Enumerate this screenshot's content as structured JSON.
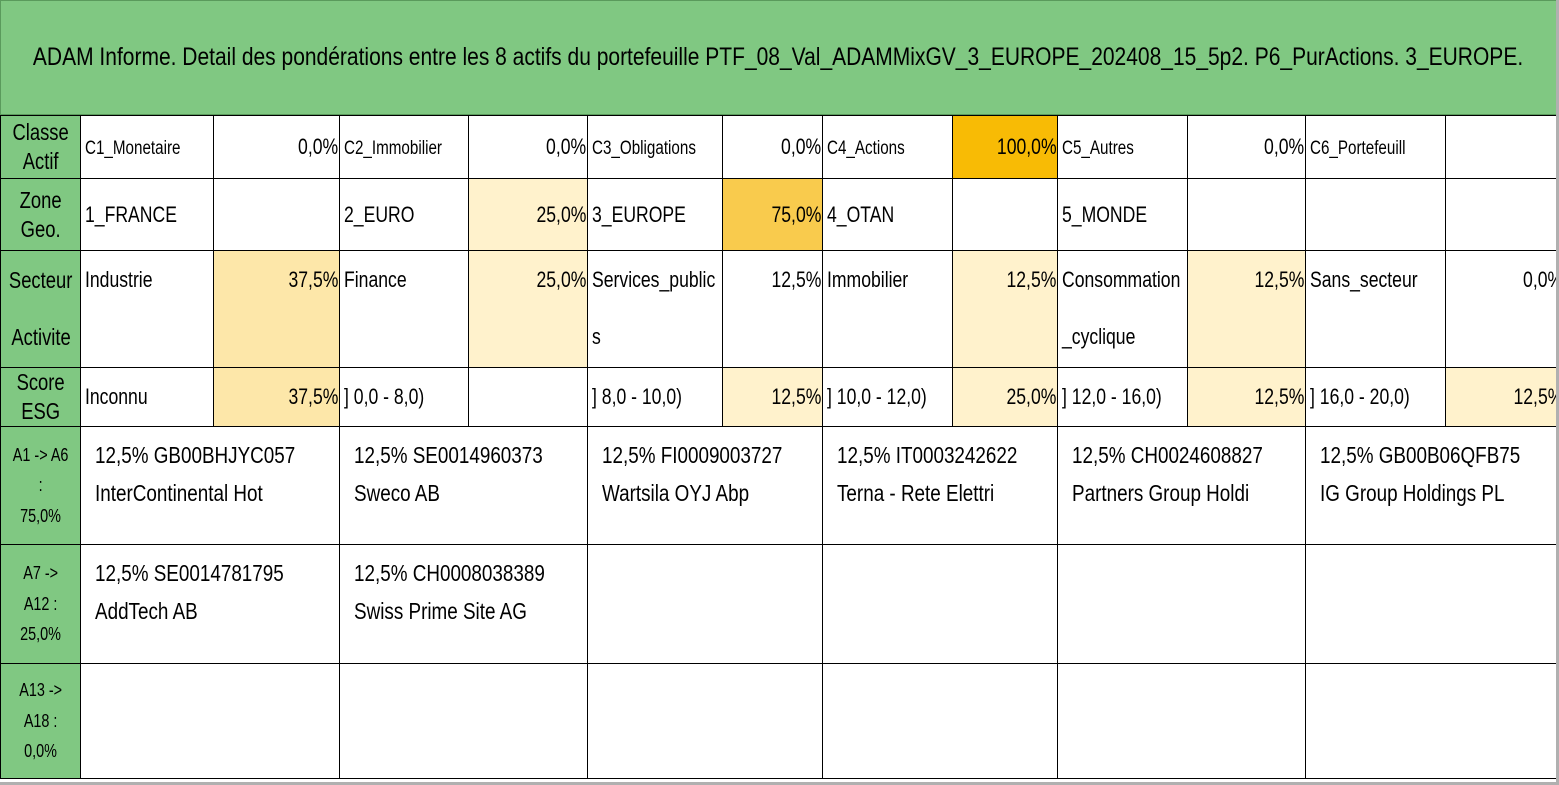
{
  "title": "ADAM Informe. Detail des pondérations entre les 8 actifs du portefeuille PTF_08_Val_ADAMMixGV_3_EUROPE_202408_15_5p2. P6_PurActions. 3_EUROPE.",
  "colors": {
    "header_green": "#80c882",
    "weight_light": "#fff2cc",
    "weight_mid": "#fbd982",
    "weight_strong": "#f8bb05"
  },
  "classe": {
    "label": "Classe Actif",
    "items": [
      {
        "name": "C1_Monetaire",
        "pct": "0,0%"
      },
      {
        "name": "C2_Immobilier",
        "pct": "0,0%"
      },
      {
        "name": "C3_Obligations",
        "pct": "0,0%"
      },
      {
        "name": "C4_Actions",
        "pct": "100,0%"
      },
      {
        "name": "C5_Autres",
        "pct": "0,0%"
      },
      {
        "name": "C6_Portefeuill",
        "pct": ""
      }
    ]
  },
  "zone": {
    "label": "Zone Geo.",
    "items": [
      {
        "name": "1_FRANCE",
        "pct": ""
      },
      {
        "name": "2_EURO",
        "pct": "25,0%"
      },
      {
        "name": "3_EUROPE",
        "pct": "75,0%"
      },
      {
        "name": "4_OTAN",
        "pct": ""
      },
      {
        "name": "5_MONDE",
        "pct": ""
      },
      {
        "name": "",
        "pct": ""
      }
    ]
  },
  "secteur": {
    "label_line1": "Secteur",
    "label_line2": "Activite",
    "items": [
      {
        "name": "Industrie",
        "pct": "37,5%"
      },
      {
        "name": "Finance",
        "pct": "25,0%"
      },
      {
        "name": "Services_publics",
        "pct": "12,5%"
      },
      {
        "name": "Immobilier",
        "pct": "12,5%"
      },
      {
        "name": "Consommation_cyclique",
        "pct": "12,5%"
      },
      {
        "name": "Sans_secteur",
        "pct": "0,0%"
      }
    ]
  },
  "esg": {
    "label": "Score ESG",
    "items": [
      {
        "name": "Inconnu",
        "pct": "37,5%"
      },
      {
        "name": "] 0,0 - 8,0)",
        "pct": ""
      },
      {
        "name": "] 8,0 - 10,0)",
        "pct": "12,5%"
      },
      {
        "name": "] 10,0 - 12,0)",
        "pct": "25,0%"
      },
      {
        "name": "] 12,0 - 16,0)",
        "pct": "12,5%"
      },
      {
        "name": "] 16,0 - 20,0)",
        "pct": "12,5%"
      }
    ]
  },
  "groups": [
    {
      "label_line1": "A1 -> A6 :",
      "label_line2": "75,0%",
      "assets": [
        {
          "line1": "12,5% GB00BHJYC057",
          "line2": "InterContinental Hot"
        },
        {
          "line1": "12,5% SE0014960373",
          "line2": "Sweco AB"
        },
        {
          "line1": "12,5% FI0009003727",
          "line2": "Wartsila OYJ Abp"
        },
        {
          "line1": "12,5% IT0003242622",
          "line2": "Terna - Rete Elettri"
        },
        {
          "line1": "12,5% CH0024608827",
          "line2": "Partners Group Holdi"
        },
        {
          "line1": "12,5% GB00B06QFB75",
          "line2": "IG Group Holdings PL"
        }
      ]
    },
    {
      "label_line1": "A7 -> A12 :",
      "label_line2": "25,0%",
      "assets": [
        {
          "line1": "12,5% SE0014781795",
          "line2": "AddTech AB"
        },
        {
          "line1": "12,5% CH0008038389",
          "line2": "Swiss Prime Site AG"
        },
        {
          "line1": "",
          "line2": ""
        },
        {
          "line1": "",
          "line2": ""
        },
        {
          "line1": "",
          "line2": ""
        },
        {
          "line1": "",
          "line2": ""
        }
      ]
    },
    {
      "label_line1": "A13 -> A18 :",
      "label_line2": "0,0%",
      "assets": [
        {
          "line1": "",
          "line2": ""
        },
        {
          "line1": "",
          "line2": ""
        },
        {
          "line1": "",
          "line2": ""
        },
        {
          "line1": "",
          "line2": ""
        },
        {
          "line1": "",
          "line2": ""
        },
        {
          "line1": "",
          "line2": ""
        }
      ]
    }
  ]
}
